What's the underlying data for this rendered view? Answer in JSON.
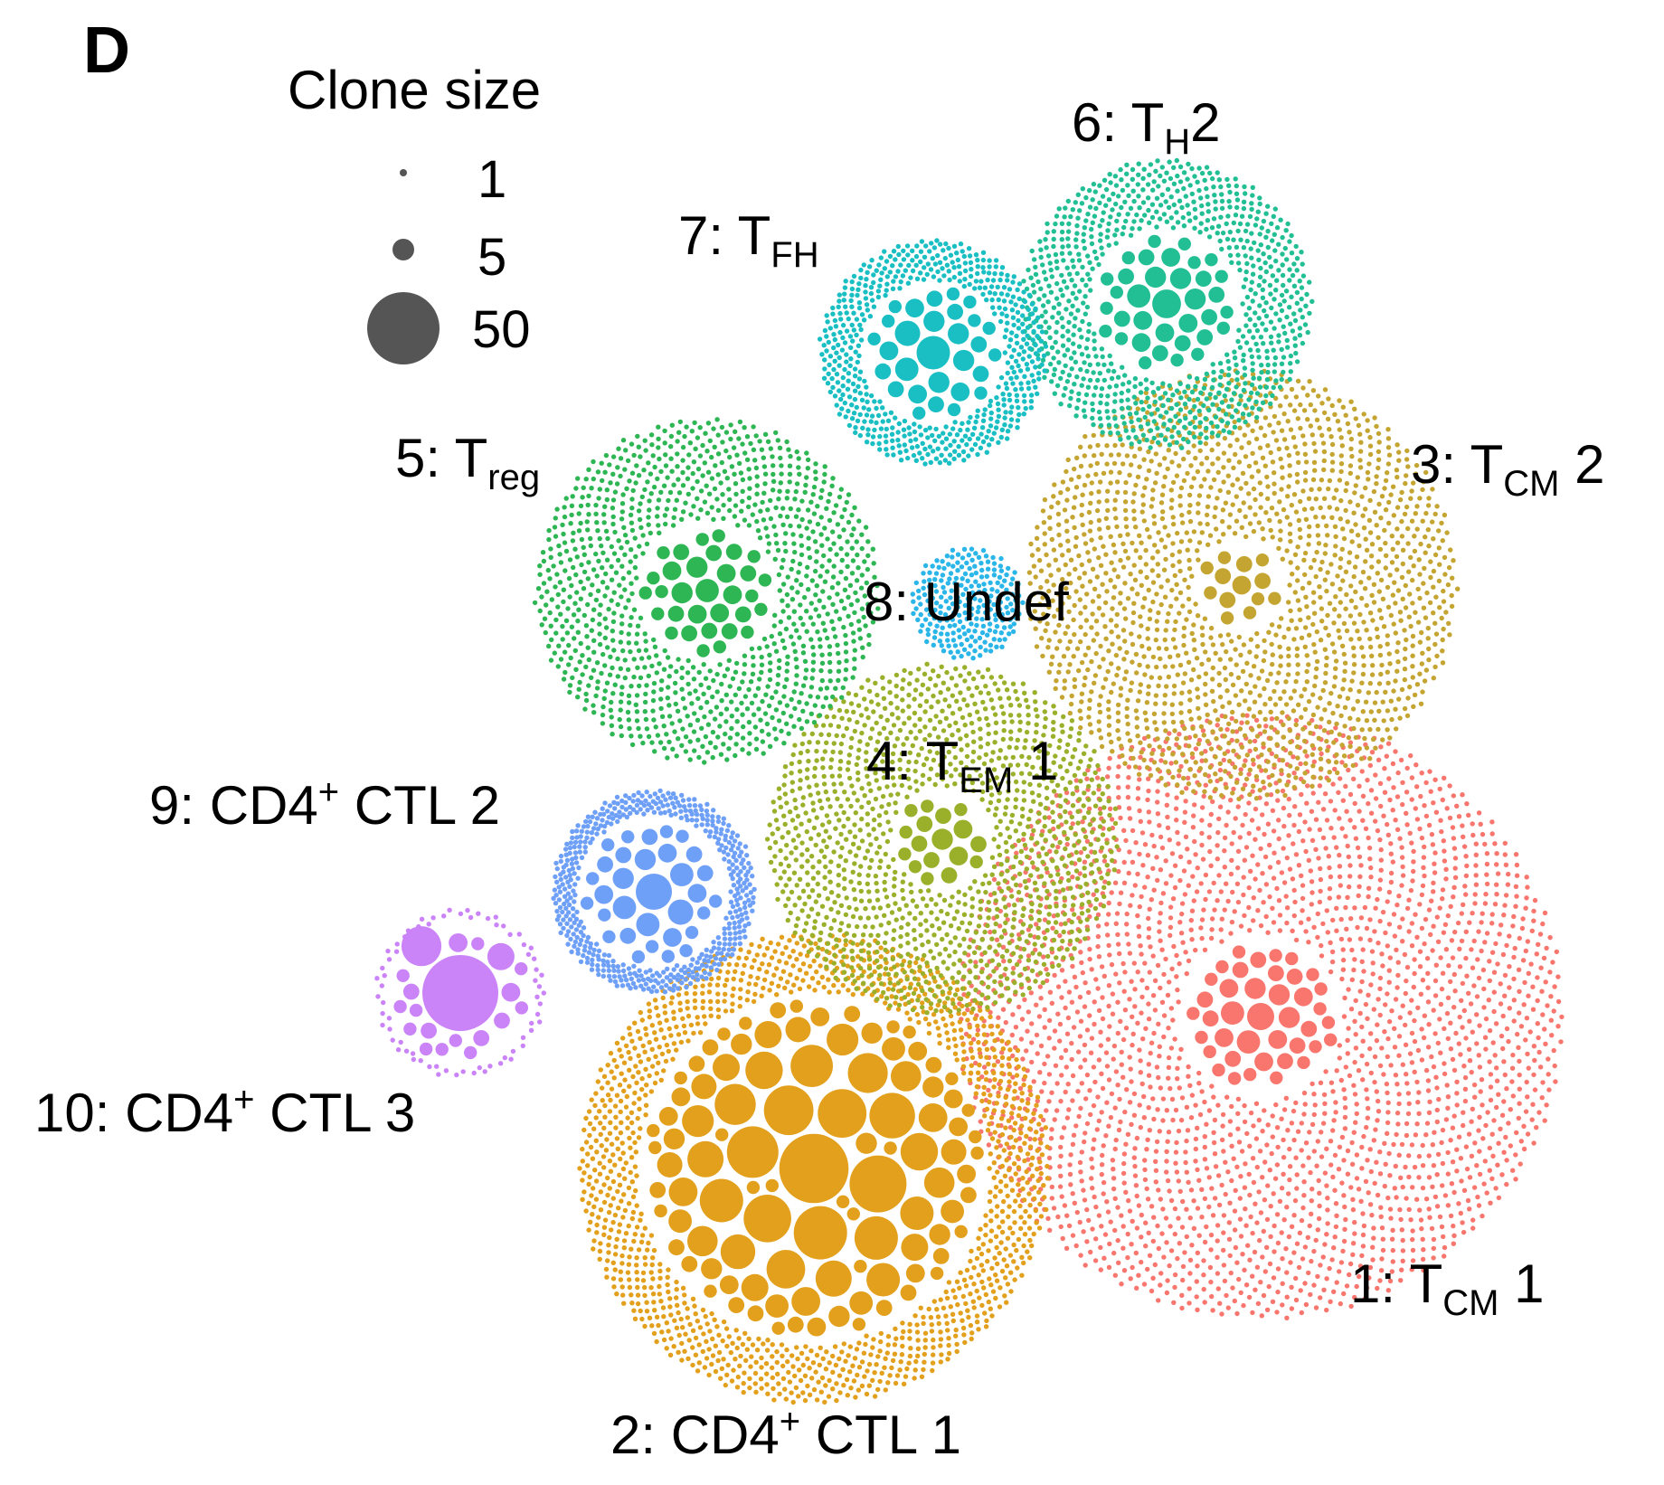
{
  "chart_data": {
    "type": "packed-bubble",
    "panel_letter": "D",
    "legend": {
      "title": "Clone size",
      "sizes": [
        {
          "label": "1",
          "value": 1
        },
        {
          "label": "5",
          "value": 5
        },
        {
          "label": "50",
          "value": 50
        }
      ],
      "color": "#555555"
    },
    "clusters": [
      {
        "id": 1,
        "parts": [
          {
            "t": "1: T"
          },
          {
            "t": "CM",
            "sub": true
          },
          {
            "t": " 1"
          }
        ],
        "color": "#F8766D",
        "singletons": 2600,
        "large": [
          8,
          6,
          6,
          5,
          5,
          5,
          4,
          4,
          4,
          4,
          4,
          3,
          3,
          3,
          3,
          3,
          3,
          3,
          3,
          3,
          3,
          2,
          2,
          2,
          2,
          2,
          2,
          2,
          2,
          2,
          2,
          2,
          2,
          2,
          2,
          2,
          2,
          2,
          2,
          2
        ]
      },
      {
        "id": 2,
        "parts": [
          {
            "t": "2: CD4"
          },
          {
            "t": "+",
            "sup": true
          },
          {
            "t": " CTL 1"
          }
        ],
        "color": "#E2A01D",
        "singletons": 1300,
        "large": [
          50,
          34,
          30,
          28,
          26,
          25,
          24,
          22,
          20,
          20,
          19,
          18,
          17,
          16,
          15,
          15,
          14,
          14,
          13,
          12,
          12,
          11,
          11,
          10,
          10,
          10,
          9,
          9,
          9,
          8,
          8,
          8,
          8,
          7,
          7,
          7,
          7,
          6,
          6,
          6,
          6,
          6,
          5,
          5,
          5,
          5,
          5,
          5,
          5,
          5,
          4,
          4,
          4,
          4,
          4,
          4,
          4,
          4,
          4,
          4,
          3,
          3,
          3,
          3,
          3,
          3,
          3,
          3,
          3,
          3,
          3,
          3,
          3,
          3,
          3,
          2,
          2,
          2,
          2,
          2,
          2,
          2,
          2,
          2,
          2,
          2,
          2,
          2,
          2,
          2,
          2,
          2,
          2,
          2,
          2,
          2,
          2,
          2,
          2,
          2
        ]
      },
      {
        "id": 3,
        "parts": [
          {
            "t": "3: T"
          },
          {
            "t": "CM",
            "sub": true
          },
          {
            "t": " 2"
          }
        ],
        "color": "#C5A532",
        "singletons": 1750,
        "large": [
          4,
          3,
          3,
          3,
          3,
          2,
          2,
          2,
          2,
          2,
          2,
          2,
          2
        ]
      },
      {
        "id": 4,
        "parts": [
          {
            "t": "4: T"
          },
          {
            "t": "EM",
            "sub": true
          },
          {
            "t": " 1"
          }
        ],
        "color": "#9BB02A",
        "singletons": 1300,
        "large": [
          5,
          4,
          4,
          3,
          3,
          3,
          3,
          3,
          3,
          2,
          2,
          2,
          2,
          2,
          2,
          2,
          2
        ]
      },
      {
        "id": 5,
        "parts": [
          {
            "t": "5: T"
          },
          {
            "t": "reg",
            "sub": true
          }
        ],
        "color": "#2DB653",
        "singletons": 1100,
        "large": [
          6,
          5,
          5,
          4,
          4,
          4,
          4,
          4,
          3,
          3,
          3,
          3,
          3,
          3,
          3,
          3,
          3,
          2,
          2,
          2,
          2,
          2,
          2,
          2,
          2,
          2,
          2,
          2,
          2,
          2,
          2,
          2
        ]
      },
      {
        "id": 6,
        "parts": [
          {
            "t": "6: T"
          },
          {
            "t": "H",
            "sub": true
          },
          {
            "t": "2"
          }
        ],
        "color": "#22BF95",
        "singletons": 850,
        "large": [
          9,
          6,
          5,
          5,
          5,
          4,
          4,
          4,
          4,
          4,
          3,
          3,
          3,
          3,
          3,
          3,
          3,
          3,
          3,
          2,
          2,
          2,
          2,
          2,
          2,
          2,
          2,
          2,
          2,
          2,
          2,
          2,
          2,
          2,
          2
        ]
      },
      {
        "id": 7,
        "parts": [
          {
            "t": "7: T"
          },
          {
            "t": "FH",
            "sub": true
          }
        ],
        "color": "#1ABFC4",
        "singletons": 560,
        "large": [
          12,
          7,
          6,
          5,
          5,
          5,
          5,
          4,
          4,
          4,
          4,
          3,
          3,
          3,
          3,
          3,
          3,
          3,
          2,
          2,
          2,
          2,
          2,
          2,
          2,
          2,
          2,
          2,
          2
        ]
      },
      {
        "id": 8,
        "parts": [
          {
            "t": "8: Undef"
          }
        ],
        "color": "#2AB6E8",
        "singletons": 240,
        "large": []
      },
      {
        "id": 9,
        "parts": [
          {
            "t": "9: CD4"
          },
          {
            "t": "+",
            "sup": true
          },
          {
            "t": " CTL 2"
          }
        ],
        "color": "#6FA0F7",
        "singletons": 500,
        "large": [
          14,
          7,
          6,
          6,
          6,
          5,
          5,
          4,
          4,
          4,
          4,
          3,
          3,
          3,
          3,
          3,
          3,
          2,
          2,
          2,
          2,
          2,
          2,
          2,
          2,
          2,
          2,
          2,
          2,
          2,
          2,
          2
        ]
      },
      {
        "id": 10,
        "parts": [
          {
            "t": "10: CD4"
          },
          {
            "t": "+",
            "sup": true
          },
          {
            "t": " CTL 3"
          }
        ],
        "color": "#CA84F8",
        "singletons": 70,
        "large": [
          60,
          17,
          8,
          4,
          4,
          3,
          3,
          3,
          3,
          2,
          2,
          2,
          2,
          2,
          2,
          2,
          2,
          2,
          2,
          2
        ]
      }
    ]
  }
}
